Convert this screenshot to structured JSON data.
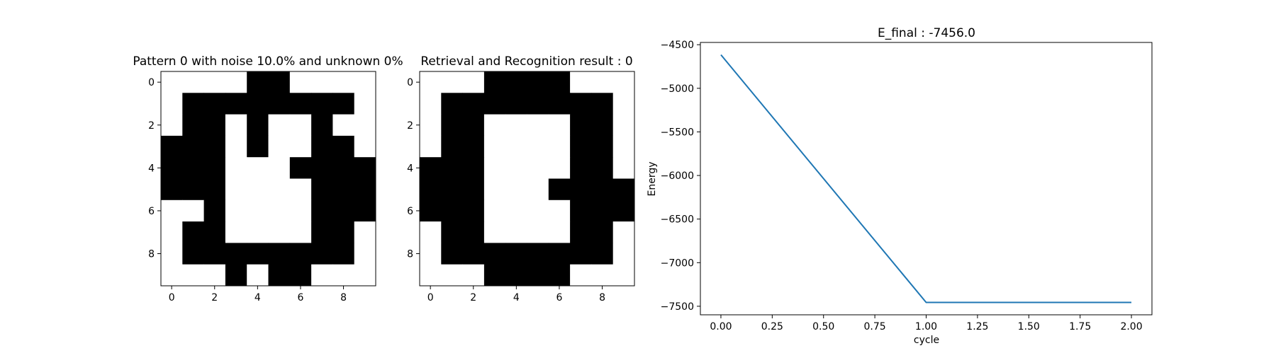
{
  "chart_data": [
    {
      "type": "heatmap",
      "title": "Pattern 0 with noise 10.0% and unknown 0%",
      "colormap": "binary (1 = black, 0 = white)",
      "x_ticks": [
        "0",
        "2",
        "4",
        "6",
        "8"
      ],
      "y_ticks": [
        "0",
        "2",
        "4",
        "6",
        "8"
      ],
      "grid": [
        [
          0,
          0,
          0,
          0,
          1,
          1,
          0,
          0,
          0,
          0
        ],
        [
          0,
          1,
          1,
          1,
          1,
          1,
          1,
          1,
          1,
          0
        ],
        [
          0,
          1,
          1,
          0,
          1,
          0,
          0,
          1,
          0,
          0
        ],
        [
          1,
          1,
          1,
          0,
          1,
          0,
          0,
          1,
          1,
          0
        ],
        [
          1,
          1,
          1,
          0,
          0,
          0,
          1,
          1,
          1,
          1
        ],
        [
          1,
          1,
          1,
          0,
          0,
          0,
          0,
          1,
          1,
          1
        ],
        [
          0,
          0,
          1,
          0,
          0,
          0,
          0,
          1,
          1,
          1
        ],
        [
          0,
          1,
          1,
          0,
          0,
          0,
          0,
          1,
          1,
          0
        ],
        [
          0,
          1,
          1,
          1,
          1,
          1,
          1,
          1,
          1,
          0
        ],
        [
          0,
          0,
          0,
          1,
          0,
          1,
          1,
          0,
          0,
          0
        ]
      ]
    },
    {
      "type": "heatmap",
      "title": "Retrieval and Recognition result : 0",
      "colormap": "binary (1 = black, 0 = white)",
      "x_ticks": [
        "0",
        "2",
        "4",
        "6",
        "8"
      ],
      "y_ticks": [
        "0",
        "2",
        "4",
        "6",
        "8"
      ],
      "grid": [
        [
          0,
          0,
          0,
          1,
          1,
          1,
          1,
          0,
          0,
          0
        ],
        [
          0,
          1,
          1,
          1,
          1,
          1,
          1,
          1,
          1,
          0
        ],
        [
          0,
          1,
          1,
          0,
          0,
          0,
          0,
          1,
          1,
          0
        ],
        [
          0,
          1,
          1,
          0,
          0,
          0,
          0,
          1,
          1,
          0
        ],
        [
          1,
          1,
          1,
          0,
          0,
          0,
          0,
          1,
          1,
          0
        ],
        [
          1,
          1,
          1,
          0,
          0,
          0,
          1,
          1,
          1,
          1
        ],
        [
          1,
          1,
          1,
          0,
          0,
          0,
          0,
          1,
          1,
          1
        ],
        [
          0,
          1,
          1,
          0,
          0,
          0,
          0,
          1,
          1,
          0
        ],
        [
          0,
          1,
          1,
          1,
          1,
          1,
          1,
          1,
          1,
          0
        ],
        [
          0,
          0,
          0,
          1,
          1,
          1,
          1,
          0,
          0,
          0
        ]
      ]
    },
    {
      "type": "line",
      "title": "E_final : -7456.0",
      "xlabel": "cycle",
      "ylabel": "Energy",
      "x": [
        0,
        1,
        2
      ],
      "series": [
        {
          "values": [
            -4616,
            -7456,
            -7456
          ],
          "color": "#1f77b4"
        }
      ],
      "xlim": [
        -0.1,
        2.1
      ],
      "ylim": [
        -7598,
        -4474
      ],
      "x_ticks": [
        0,
        0.25,
        0.5,
        0.75,
        1.0,
        1.25,
        1.5,
        1.75,
        2.0
      ],
      "x_tick_labels": [
        "0.00",
        "0.25",
        "0.50",
        "0.75",
        "1.00",
        "1.25",
        "1.50",
        "1.75",
        "2.00"
      ],
      "y_ticks": [
        -4500,
        -5000,
        -5500,
        -6000,
        -6500,
        -7000,
        -7500
      ],
      "y_tick_labels": [
        "−4500",
        "−5000",
        "−5500",
        "−6000",
        "−6500",
        "−7000",
        "−7500"
      ],
      "grid": false
    }
  ]
}
